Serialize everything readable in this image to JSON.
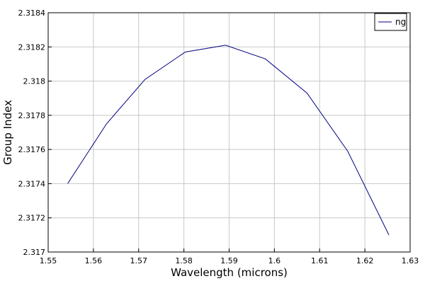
{
  "chart_data": {
    "type": "line",
    "xlabel": "Wavelength (microns)",
    "ylabel": "Group Index",
    "xlim": [
      1.55,
      1.63
    ],
    "ylim": [
      2.317,
      2.3184
    ],
    "x_ticks": [
      1.55,
      1.56,
      1.57,
      1.58,
      1.59,
      1.6,
      1.61,
      1.62,
      1.63
    ],
    "x_tick_labels": [
      "1.55",
      "1.56",
      "1.57",
      "1.58",
      "1.59",
      "1.6",
      "1.61",
      "1.62",
      "1.63"
    ],
    "y_ticks": [
      2.317,
      2.3172,
      2.3174,
      2.3176,
      2.3178,
      2.318,
      2.3182,
      2.3184
    ],
    "y_tick_labels": [
      "2.317",
      "2.3172",
      "2.3174",
      "2.3176",
      "2.3178",
      "2.318",
      "2.3182",
      "2.3184"
    ],
    "grid": true,
    "legend_position": "top-right",
    "series": [
      {
        "name": "ng",
        "color": "#000080",
        "x": [
          1.5543,
          1.5629,
          1.5714,
          1.5803,
          1.5892,
          1.598,
          1.6072,
          1.6162,
          1.6253
        ],
        "y": [
          2.3174,
          2.31775,
          2.31801,
          2.31817,
          2.31821,
          2.31813,
          2.31793,
          2.31759,
          2.3171
        ]
      }
    ]
  }
}
